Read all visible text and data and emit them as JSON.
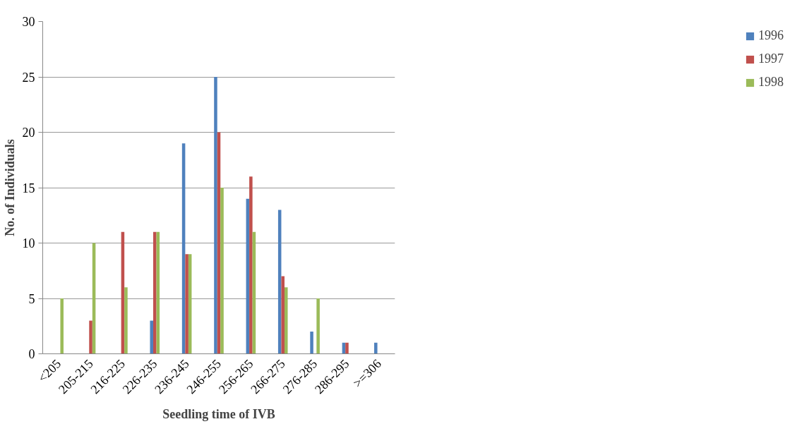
{
  "chart_data": {
    "type": "bar",
    "xlabel": "Seedling time of IVB",
    "ylabel": "No. of Individuals",
    "categories": [
      "<205",
      "205-215",
      "216-225",
      "226-235",
      "236-245",
      "246-255",
      "256-265",
      "266-275",
      "276-285",
      "286-295",
      ">=306"
    ],
    "series": [
      {
        "name": "1996",
        "color": "#4f81bd",
        "values": [
          0,
          0,
          0,
          3,
          19,
          25,
          14,
          13,
          2,
          1,
          1
        ]
      },
      {
        "name": "1997",
        "color": "#c0504d",
        "values": [
          0,
          3,
          11,
          11,
          9,
          20,
          16,
          7,
          0,
          1,
          0
        ]
      },
      {
        "name": "1998",
        "color": "#9bbb59",
        "values": [
          5,
          10,
          6,
          11,
          9,
          15,
          11,
          6,
          5,
          0,
          0
        ]
      }
    ],
    "ylim": [
      0,
      30
    ],
    "yticks": [
      0,
      5,
      10,
      15,
      20,
      25,
      30
    ],
    "grid": "y",
    "legend": "right"
  }
}
